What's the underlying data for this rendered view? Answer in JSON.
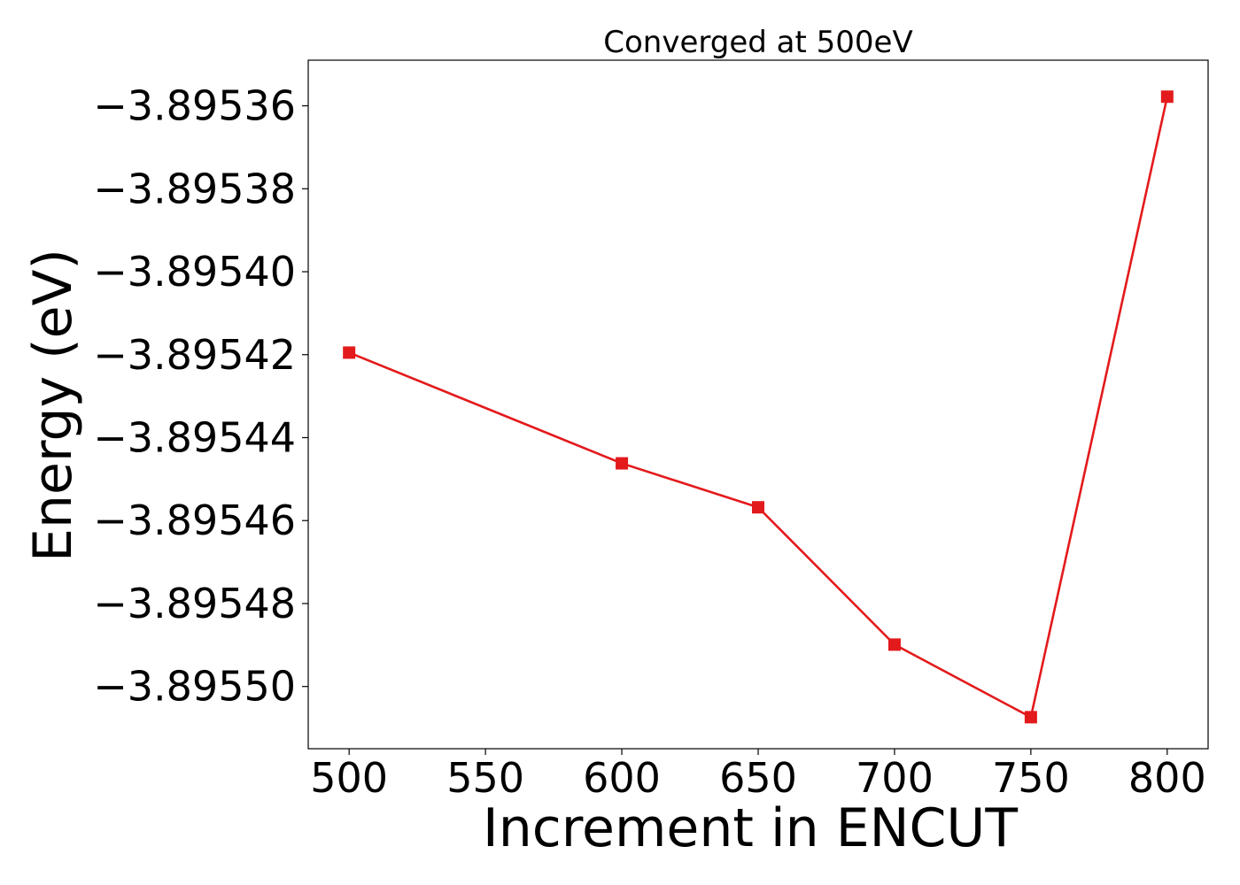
{
  "chart_data": {
    "type": "line",
    "title": "Converged at 500eV",
    "xlabel": "Increment in ENCUT",
    "ylabel": "Energy (eV)",
    "xlim": [
      485,
      815
    ],
    "ylim": [
      -3.895515,
      -3.895349
    ],
    "xticks": [
      500,
      550,
      600,
      650,
      700,
      750,
      800
    ],
    "xtick_labels": [
      "500",
      "550",
      "600",
      "650",
      "700",
      "750",
      "800"
    ],
    "yticks": [
      -3.89536,
      -3.89538,
      -3.8954,
      -3.89542,
      -3.89544,
      -3.89546,
      -3.89548,
      -3.8955
    ],
    "ytick_labels": [
      "−3.89536",
      "−3.89538",
      "−3.89540",
      "−3.89542",
      "−3.89544",
      "−3.89546",
      "−3.89548",
      "−3.89550"
    ],
    "grid": false,
    "series": [
      {
        "color": "#e31a1c",
        "marker": "square",
        "points": [
          {
            "x": 500,
            "y": -3.8954195
          },
          {
            "x": 600,
            "y": -3.8954462
          },
          {
            "x": 650,
            "y": -3.8954568
          },
          {
            "x": 700,
            "y": -3.8954899
          },
          {
            "x": 750,
            "y": -3.8955074
          },
          {
            "x": 800,
            "y": -3.8953578
          }
        ]
      }
    ]
  }
}
